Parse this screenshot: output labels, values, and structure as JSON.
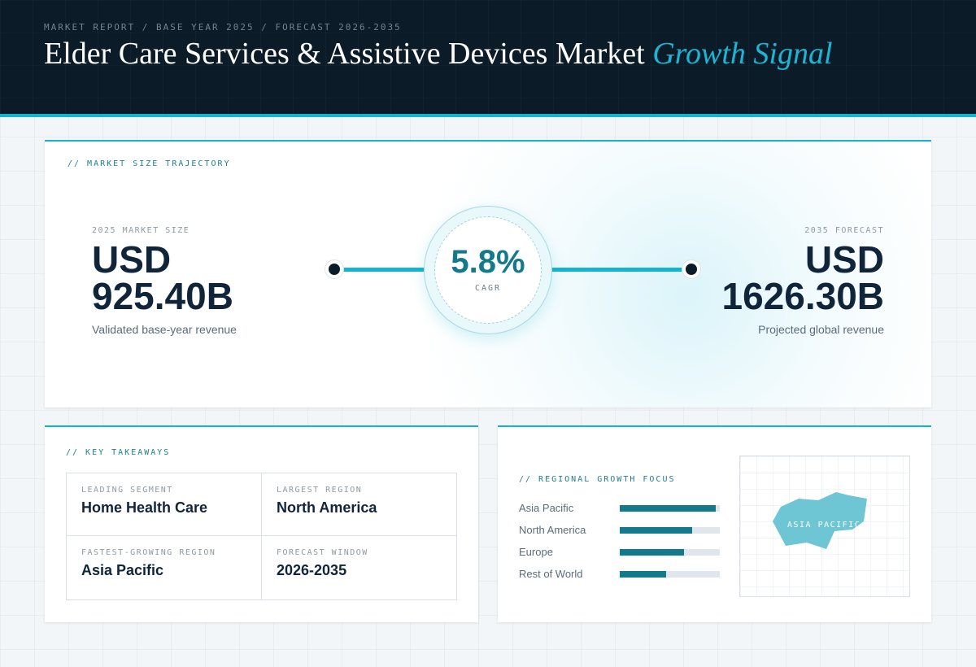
{
  "header": {
    "breadcrumb": "MARKET REPORT / BASE YEAR 2025 / FORECAST 2026-2035",
    "title_main": "Elder Care Services & Assistive Devices Market",
    "title_accent": "Growth Signal"
  },
  "trajectory": {
    "section_label": "// MARKET SIZE TRAJECTORY",
    "start": {
      "caption": "2025 MARKET SIZE",
      "currency": "USD",
      "value": "925.40B",
      "subtitle": "Validated base-year revenue"
    },
    "end": {
      "caption": "2035 FORECAST",
      "currency": "USD",
      "value": "1626.30B",
      "subtitle": "Projected global revenue"
    },
    "cagr": {
      "value": "5.8%",
      "label": "CAGR"
    }
  },
  "takeaways": {
    "section_label": "// KEY TAKEAWAYS",
    "items": [
      {
        "caption": "LEADING SEGMENT",
        "value": "Home Health Care"
      },
      {
        "caption": "LARGEST REGION",
        "value": "North America"
      },
      {
        "caption": "FASTEST-GROWING REGION",
        "value": "Asia Pacific"
      },
      {
        "caption": "FORECAST WINDOW",
        "value": "2026-2035"
      }
    ]
  },
  "regional": {
    "section_label": "// REGIONAL GROWTH FOCUS",
    "map_label": "ASIA PACIFIC"
  },
  "chart_data": {
    "type": "bar",
    "orientation": "horizontal",
    "categories": [
      "Asia Pacific",
      "North America",
      "Europe",
      "Rest of World"
    ],
    "values": [
      0.96,
      0.72,
      0.64,
      0.46
    ],
    "value_scale": "relative share of bar track (0-1)",
    "xlim": [
      0,
      1
    ],
    "grid": false
  },
  "colors": {
    "accent": "#12b4cf",
    "bar_fill": "#127a8c",
    "bar_track": "#dfe7ec",
    "header_bg": "#0c1b28",
    "map_fill": "#6ec5d3"
  }
}
